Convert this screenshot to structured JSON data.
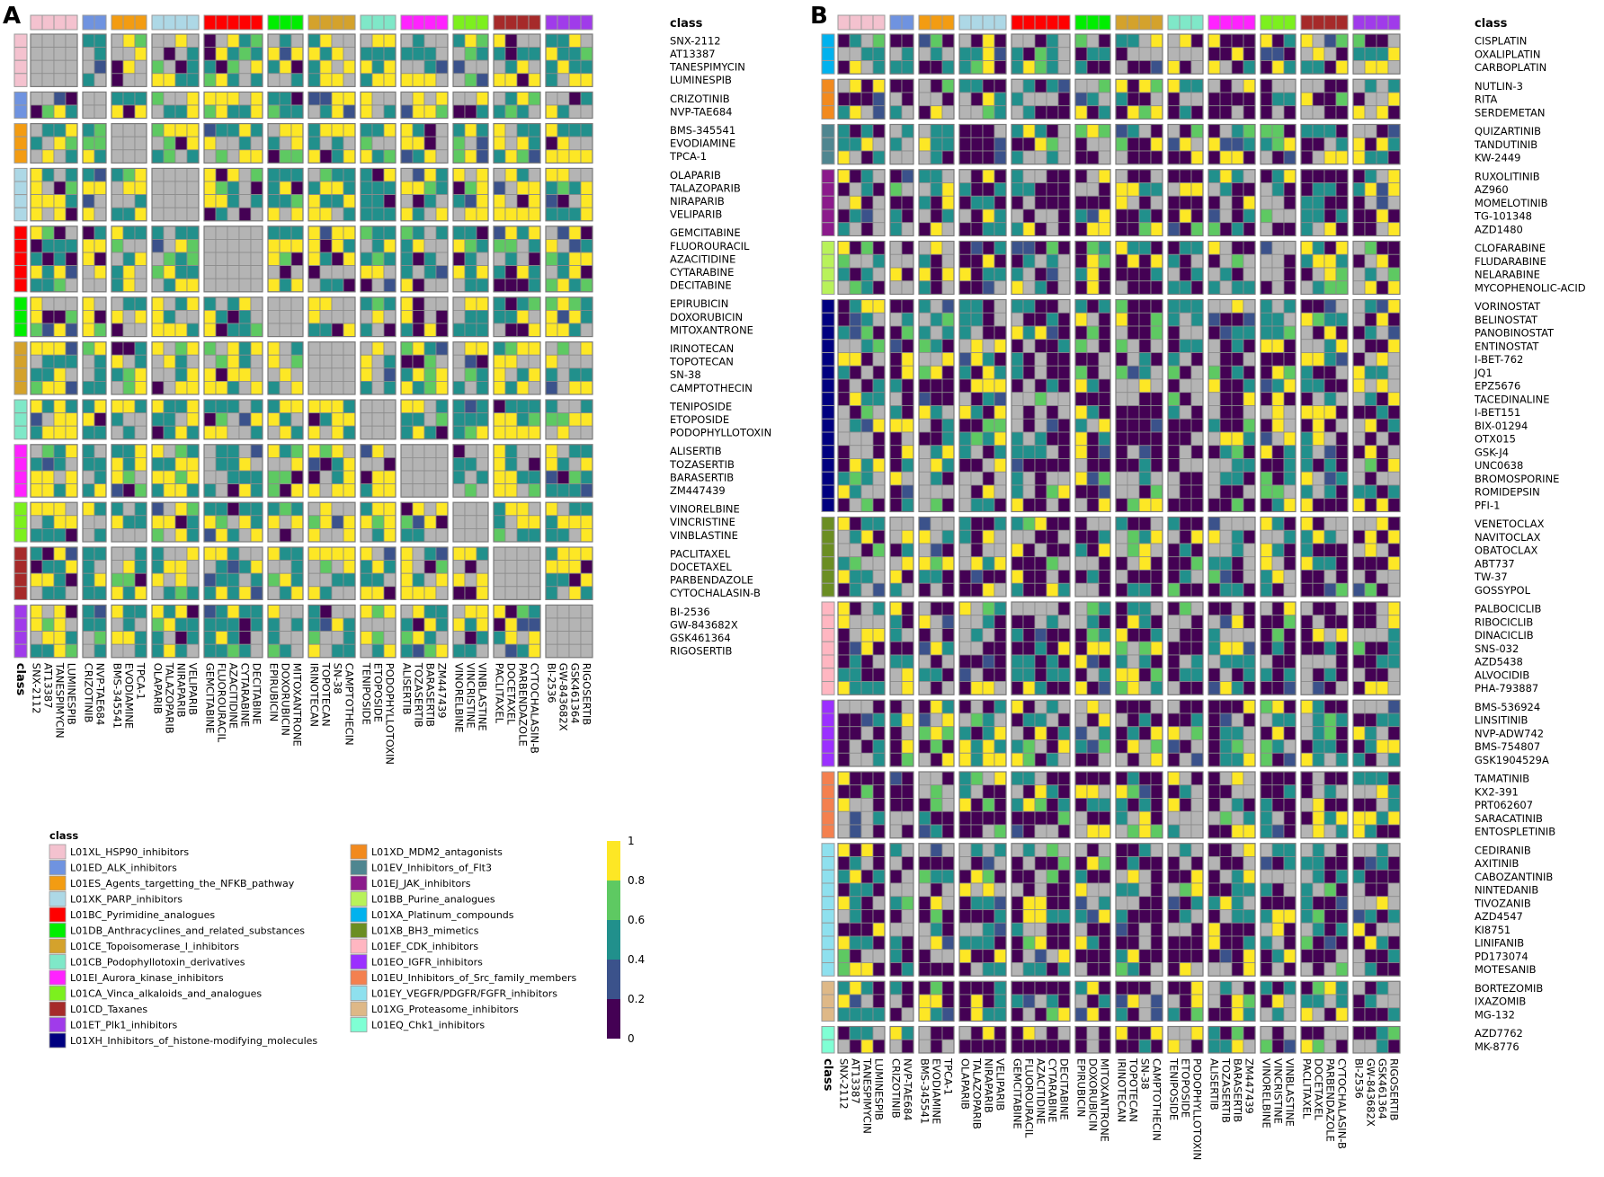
{
  "palette": {
    "v0": "#440154",
    "v1": "#3b528b",
    "v2": "#21908c",
    "v3": "#5ec962",
    "v4": "#fde725",
    "na": "#b4b4b4"
  },
  "classes": [
    {
      "code": "L01XL_HSP90_inhibitors",
      "color": "#f4c2cf"
    },
    {
      "code": "L01ED_ALK_inhibitors",
      "color": "#6f93e0"
    },
    {
      "code": "L01ES_Agents_targetting_the_NFKB_pathway",
      "color": "#f39c12"
    },
    {
      "code": "L01XK_PARP_inhibitors",
      "color": "#add8e6"
    },
    {
      "code": "L01BC_Pyrimidine_analogues",
      "color": "#ff0000"
    },
    {
      "code": "L01DB_Anthracyclines_and_related_substances",
      "color": "#00ee00"
    },
    {
      "code": "L01CE_Topoisomerase_I_inhibitors",
      "color": "#d4a22c"
    },
    {
      "code": "L01CB_Podophyllotoxin_derivatives",
      "color": "#7fe8c8"
    },
    {
      "code": "L01EI_Aurora_kinase_inhibitors",
      "color": "#ff22ff"
    },
    {
      "code": "L01CA_Vinca_alkaloids_and_analogues",
      "color": "#7cf01e"
    },
    {
      "code": "L01CD_Taxanes",
      "color": "#a62a2a"
    },
    {
      "code": "L01ET_Plk1_inhibitors",
      "color": "#a03bea"
    },
    {
      "code": "L01XH_Inhibitors_of_histone-modifying_molecules",
      "color": "#000080"
    },
    {
      "code": "L01XD_MDM2_antagonists",
      "color": "#f28a1e"
    },
    {
      "code": "L01EV_Inhibitors_of_Flt3",
      "color": "#4f8690"
    },
    {
      "code": "L01EJ_JAK_inhibitors",
      "color": "#8b1a8b"
    },
    {
      "code": "L01BB_Purine_analogues",
      "color": "#b8f25a"
    },
    {
      "code": "L01XA_Platinum_compounds",
      "color": "#00b2ee"
    },
    {
      "code": "L01XB_BH3_mimetics",
      "color": "#6b8e23"
    },
    {
      "code": "L01EF_CDK_inhibitors",
      "color": "#ffb6c1"
    },
    {
      "code": "L01EO_IGFR_inhibitors",
      "color": "#9b30ff"
    },
    {
      "code": "L01EU_Inhibitors_of_Src_family_members",
      "color": "#f4804f"
    },
    {
      "code": "L01EY_VEGFR/PDGFR/FGFR_inhibitors",
      "color": "#8ee0ee"
    },
    {
      "code": "L01XG_Proteasome_inhibitors",
      "color": "#deb887"
    },
    {
      "code": "L01EQ_Chk1_inhibitors",
      "color": "#7fffd4"
    }
  ],
  "chart_data": [
    {
      "type": "heatmap",
      "panel": "A",
      "class_header": "class",
      "class_axis_label": "class",
      "column_groups": [
        {
          "class": 0,
          "drugs": [
            "SNX-2112",
            "AT13387",
            "TANESPIMYCIN",
            "LUMINESPIB"
          ]
        },
        {
          "class": 1,
          "drugs": [
            "CRIZOTINIB",
            "NVP-TAE684"
          ]
        },
        {
          "class": 2,
          "drugs": [
            "BMS-345541",
            "EVODIAMINE",
            "TPCA-1"
          ]
        },
        {
          "class": 3,
          "drugs": [
            "OLAPARIB",
            "TALAZOPARIB",
            "NIRAPARIB",
            "VELIPARIB"
          ]
        },
        {
          "class": 4,
          "drugs": [
            "GEMCITABINE",
            "FLUOROURACIL",
            "AZACITIDINE",
            "CYTARABINE",
            "DECITABINE"
          ]
        },
        {
          "class": 5,
          "drugs": [
            "EPIRUBICIN",
            "DOXORUBICIN",
            "MITOXANTRONE"
          ]
        },
        {
          "class": 6,
          "drugs": [
            "IRINOTECAN",
            "TOPOTECAN",
            "SN-38",
            "CAMPTOTHECIN"
          ]
        },
        {
          "class": 7,
          "drugs": [
            "TENIPOSIDE",
            "ETOPOSIDE",
            "PODOPHYLLOTOXIN"
          ]
        },
        {
          "class": 8,
          "drugs": [
            "ALISERTIB",
            "TOZASERTIB",
            "BARASERTIB",
            "ZM447439"
          ]
        },
        {
          "class": 9,
          "drugs": [
            "VINORELBINE",
            "VINCRISTINE",
            "VINBLASTINE"
          ]
        },
        {
          "class": 10,
          "drugs": [
            "PACLITAXEL",
            "DOCETAXEL",
            "PARBENDAZOLE",
            "CYTOCHALASIN-B"
          ]
        },
        {
          "class": 11,
          "drugs": [
            "BI-2536",
            "GW-843682X",
            "GSK461364",
            "RIGOSERTIB"
          ]
        }
      ],
      "row_groups": [
        {
          "class": 0,
          "drugs": [
            "SNX-2112",
            "AT13387",
            "TANESPIMYCIN",
            "LUMINESPIB"
          ]
        },
        {
          "class": 1,
          "drugs": [
            "CRIZOTINIB",
            "NVP-TAE684"
          ]
        },
        {
          "class": 2,
          "drugs": [
            "BMS-345541",
            "EVODIAMINE",
            "TPCA-1"
          ]
        },
        {
          "class": 3,
          "drugs": [
            "OLAPARIB",
            "TALAZOPARIB",
            "NIRAPARIB",
            "VELIPARIB"
          ]
        },
        {
          "class": 4,
          "drugs": [
            "GEMCITABINE",
            "FLUOROURACIL",
            "AZACITIDINE",
            "CYTARABINE",
            "DECITABINE"
          ]
        },
        {
          "class": 5,
          "drugs": [
            "EPIRUBICIN",
            "DOXORUBICIN",
            "MITOXANTRONE"
          ]
        },
        {
          "class": 6,
          "drugs": [
            "IRINOTECAN",
            "TOPOTECAN",
            "SN-38",
            "CAMPTOTHECIN"
          ]
        },
        {
          "class": 7,
          "drugs": [
            "TENIPOSIDE",
            "ETOPOSIDE",
            "PODOPHYLLOTOXIN"
          ]
        },
        {
          "class": 8,
          "drugs": [
            "ALISERTIB",
            "TOZASERTIB",
            "BARASERTIB",
            "ZM447439"
          ]
        },
        {
          "class": 9,
          "drugs": [
            "VINORELBINE",
            "VINCRISTINE",
            "VINBLASTINE"
          ]
        },
        {
          "class": 10,
          "drugs": [
            "PACLITAXEL",
            "DOCETAXEL",
            "PARBENDAZOLE",
            "CYTOCHALASIN-B"
          ]
        },
        {
          "class": 11,
          "drugs": [
            "BI-2536",
            "GW-843682X",
            "GSK461364",
            "RIGOSERTIB"
          ]
        }
      ],
      "value_levels": [
        0,
        0.2,
        0.4,
        0.6,
        0.8,
        1
      ],
      "note": "cell values are binned scores in [0,1]; grey = not available (same-class block)"
    },
    {
      "type": "heatmap",
      "panel": "B",
      "class_header": "class",
      "class_axis_label": "class",
      "column_groups": [
        {
          "class": 0,
          "drugs": [
            "SNX-2112",
            "AT13387",
            "TANESPIMYCIN",
            "LUMINESPIB"
          ]
        },
        {
          "class": 1,
          "drugs": [
            "CRIZOTINIB",
            "NVP-TAE684"
          ]
        },
        {
          "class": 2,
          "drugs": [
            "BMS-345541",
            "EVODIAMINE",
            "TPCA-1"
          ]
        },
        {
          "class": 3,
          "drugs": [
            "OLAPARIB",
            "TALAZOPARIB",
            "NIRAPARIB",
            "VELIPARIB"
          ]
        },
        {
          "class": 4,
          "drugs": [
            "GEMCITABINE",
            "FLUOROURACIL",
            "AZACITIDINE",
            "CYTARABINE",
            "DECITABINE"
          ]
        },
        {
          "class": 5,
          "drugs": [
            "EPIRUBICIN",
            "DOXORUBICIN",
            "MITOXANTRONE"
          ]
        },
        {
          "class": 6,
          "drugs": [
            "IRINOTECAN",
            "TOPOTECAN",
            "SN-38",
            "CAMPTOTHECIN"
          ]
        },
        {
          "class": 7,
          "drugs": [
            "TENIPOSIDE",
            "ETOPOSIDE",
            "PODOPHYLLOTOXIN"
          ]
        },
        {
          "class": 8,
          "drugs": [
            "ALISERTIB",
            "TOZASERTIB",
            "BARASERTIB",
            "ZM447439"
          ]
        },
        {
          "class": 9,
          "drugs": [
            "VINORELBINE",
            "VINCRISTINE",
            "VINBLASTINE"
          ]
        },
        {
          "class": 10,
          "drugs": [
            "PACLITAXEL",
            "DOCETAXEL",
            "PARBENDAZOLE",
            "CYTOCHALASIN-B"
          ]
        },
        {
          "class": 11,
          "drugs": [
            "BI-2536",
            "GW-843682X",
            "GSK461364",
            "RIGOSERTIB"
          ]
        }
      ],
      "row_groups": [
        {
          "class": 17,
          "drugs": [
            "CISPLATIN",
            "OXALIPLATIN",
            "CARBOPLATIN"
          ]
        },
        {
          "class": 13,
          "drugs": [
            "NUTLIN-3",
            "RITA",
            "SERDEMETAN"
          ]
        },
        {
          "class": 14,
          "drugs": [
            "QUIZARTINIB",
            "TANDUTINIB",
            "KW-2449"
          ]
        },
        {
          "class": 15,
          "drugs": [
            "RUXOLITINIB",
            "AZ960",
            "MOMELOTINIB",
            "TG-101348",
            "AZD1480"
          ]
        },
        {
          "class": 16,
          "drugs": [
            "CLOFARABINE",
            "FLUDARABINE",
            "NELARABINE",
            "MYCOPHENOLIC-ACID"
          ]
        },
        {
          "class": 12,
          "drugs": [
            "VORINOSTAT",
            "BELINOSTAT",
            "PANOBINOSTAT",
            "ENTINOSTAT",
            "I-BET-762",
            "JQ1",
            "EPZ5676",
            "TACEDINALINE",
            "I-BET151",
            "BIX-01294",
            "OTX015",
            "GSK-J4",
            "UNC0638",
            "BROMOSPORINE",
            "ROMIDEPSIN",
            "PFI-1"
          ]
        },
        {
          "class": 18,
          "drugs": [
            "VENETOCLAX",
            "NAVITOCLAX",
            "OBATOCLAX",
            "ABT737",
            "TW-37",
            "GOSSYPOL"
          ]
        },
        {
          "class": 19,
          "drugs": [
            "PALBOCICLIB",
            "RIBOCICLIB",
            "DINACICLIB",
            "SNS-032",
            "AZD5438",
            "ALVOCIDIB",
            "PHA-793887"
          ]
        },
        {
          "class": 20,
          "drugs": [
            "BMS-536924",
            "LINSITINIB",
            "NVP-ADW742",
            "BMS-754807",
            "GSK1904529A"
          ]
        },
        {
          "class": 21,
          "drugs": [
            "TAMATINIB",
            "KX2-391",
            "PRT062607",
            "SARACATINIB",
            "ENTOSPLETINIB"
          ]
        },
        {
          "class": 22,
          "drugs": [
            "CEDIRANIB",
            "AXITINIB",
            "CABOZANTINIB",
            "NINTEDANIB",
            "TIVOZANIB",
            "AZD4547",
            "KI8751",
            "LINIFANIB",
            "PD173074",
            "MOTESANIB"
          ]
        },
        {
          "class": 23,
          "drugs": [
            "BORTEZOMIB",
            "IXAZOMIB",
            "MG-132"
          ]
        },
        {
          "class": 24,
          "drugs": [
            "AZD7762",
            "MK-8776"
          ]
        }
      ],
      "value_levels": [
        0,
        0.2,
        0.4,
        0.6,
        0.8,
        1
      ]
    }
  ],
  "legend": {
    "title": "class",
    "colorbar_ticks": [
      "0",
      "0.2",
      "0.4",
      "0.6",
      "0.8",
      "1"
    ]
  }
}
